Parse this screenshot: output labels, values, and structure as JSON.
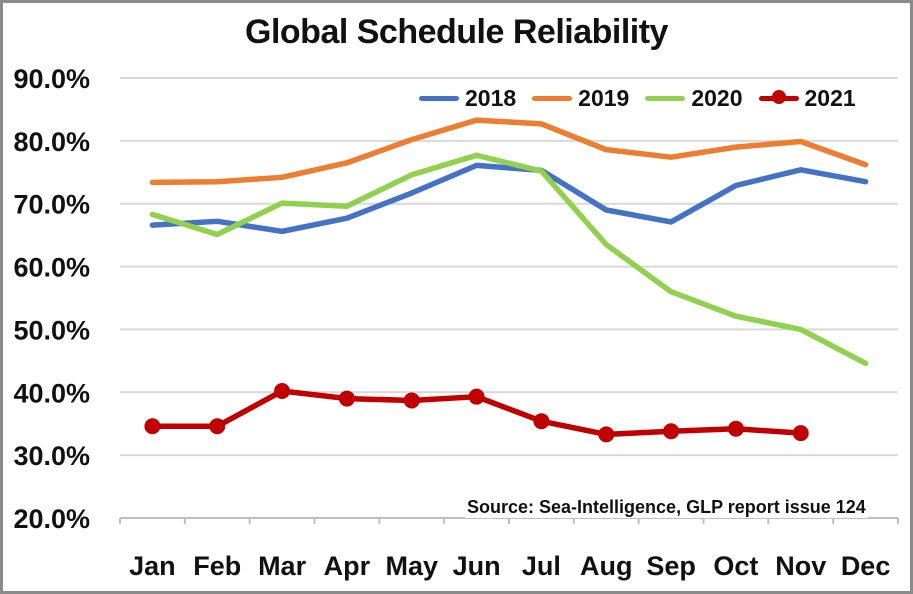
{
  "chart_data": {
    "type": "line",
    "title": "Global Schedule Reliability",
    "source": "Source: Sea-Intelligence, GLP report issue 124",
    "categories": [
      "Jan",
      "Feb",
      "Mar",
      "Apr",
      "May",
      "Jun",
      "Jul",
      "Aug",
      "Sep",
      "Oct",
      "Nov",
      "Dec"
    ],
    "y_ticks": [
      "90.0%",
      "80.0%",
      "70.0%",
      "60.0%",
      "50.0%",
      "40.0%",
      "30.0%",
      "20.0%"
    ],
    "ylim": [
      20,
      90
    ],
    "grid": true,
    "legend_position": "top-right",
    "series": [
      {
        "name": "2018",
        "color": "#4472c4",
        "markers": false,
        "values": [
          66.6,
          67.2,
          65.6,
          67.7,
          71.7,
          76.1,
          75.3,
          69.0,
          67.1,
          72.9,
          75.4,
          73.5
        ]
      },
      {
        "name": "2019",
        "color": "#ed7d31",
        "markers": false,
        "values": [
          73.4,
          73.5,
          74.2,
          76.5,
          80.2,
          83.3,
          82.7,
          78.6,
          77.4,
          79.0,
          79.9,
          76.2
        ]
      },
      {
        "name": "2020",
        "color": "#92d050",
        "markers": false,
        "values": [
          68.3,
          65.1,
          70.1,
          69.6,
          74.6,
          77.7,
          75.2,
          63.5,
          56.0,
          52.1,
          50.0,
          44.6
        ]
      },
      {
        "name": "2021",
        "color": "#c00000",
        "markers": true,
        "values": [
          34.6,
          34.6,
          40.2,
          39.0,
          38.7,
          39.3,
          35.4,
          33.3,
          33.8,
          34.2,
          33.5,
          null
        ]
      }
    ]
  }
}
